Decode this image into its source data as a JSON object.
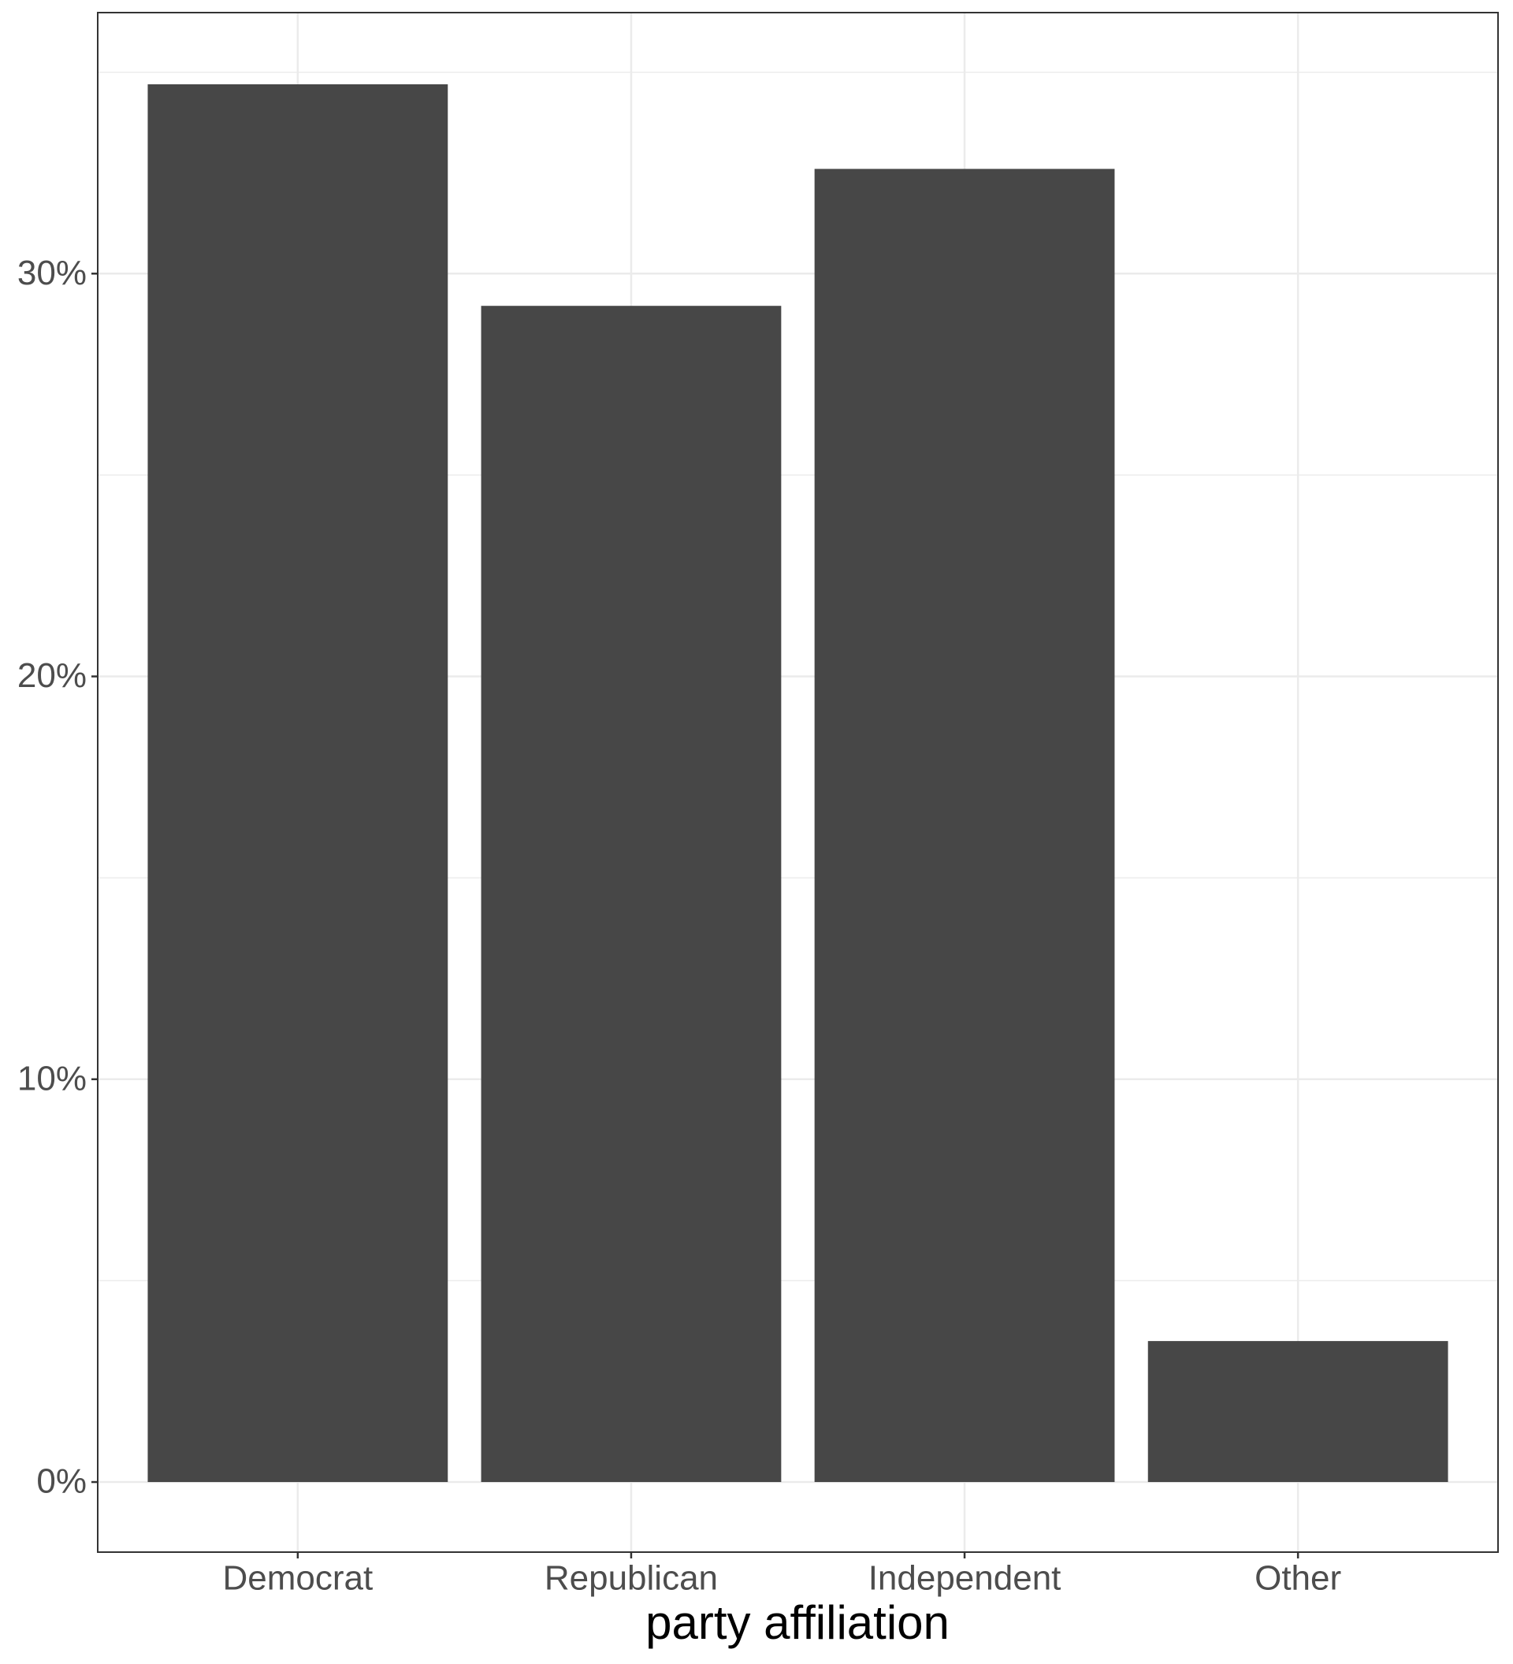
{
  "chart_data": {
    "type": "bar",
    "x_label": "party affiliation",
    "categories": [
      "Democrat",
      "Republican",
      "Independent",
      "Other"
    ],
    "values": [
      34.7,
      29.2,
      32.6,
      3.5
    ],
    "color": "#474747",
    "ylim": [
      -1.74,
      36.48
    ],
    "yticks": [
      {
        "value": 0,
        "label": "0%"
      },
      {
        "value": 10,
        "label": "10%"
      },
      {
        "value": 20,
        "label": "20%"
      },
      {
        "value": 30,
        "label": "30%"
      }
    ],
    "minor_yticks": [
      5,
      15,
      25,
      35
    ],
    "grid": true
  }
}
